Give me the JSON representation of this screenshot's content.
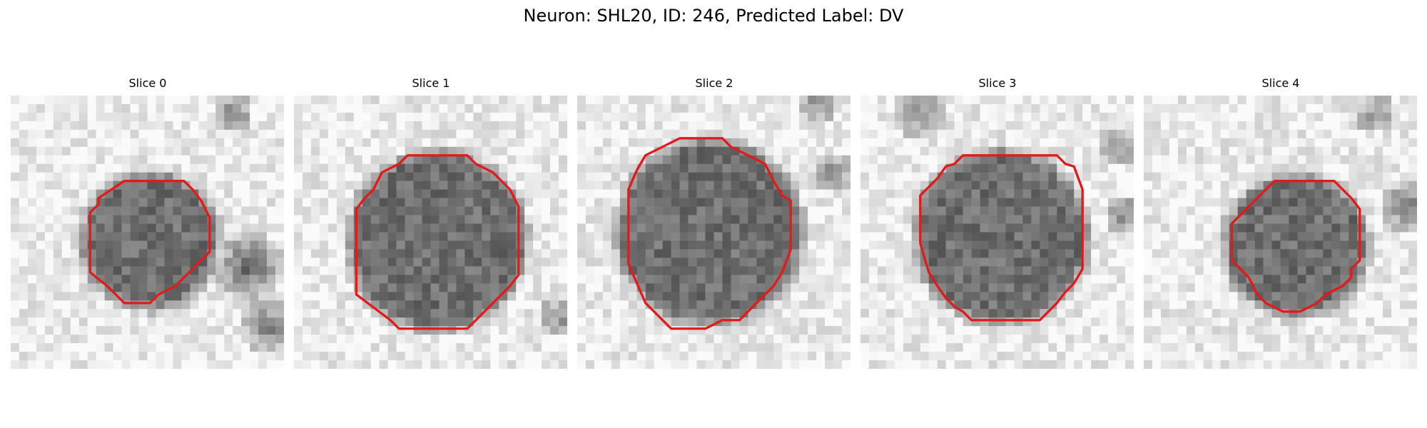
{
  "figure": {
    "suptitle": "Neuron: SHL20, ID: 246, Predicted Label: DV",
    "contour_color": "#e11b1b"
  },
  "panels": [
    {
      "title": "Slice 0"
    },
    {
      "title": "Slice 1"
    },
    {
      "title": "Slice 2"
    },
    {
      "title": "Slice 3"
    },
    {
      "title": "Slice 4"
    }
  ]
}
